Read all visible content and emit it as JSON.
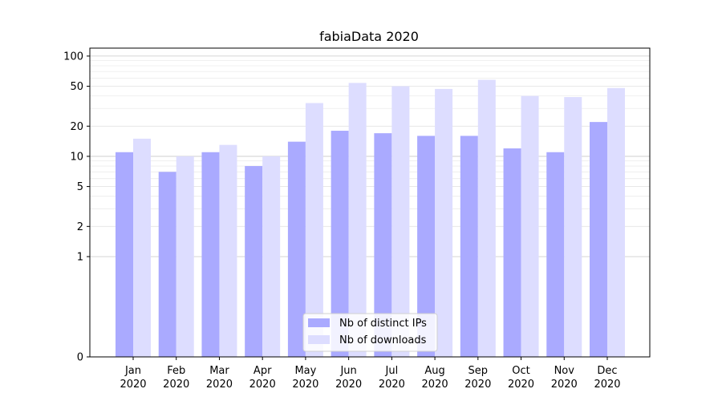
{
  "chart_data": {
    "type": "bar",
    "title": "fabiaData 2020",
    "xlabel": "",
    "ylabel": "",
    "yscale": "symlog",
    "ylim": [
      0,
      120
    ],
    "yticks": [
      0,
      1,
      2,
      5,
      10,
      20,
      50,
      100
    ],
    "grid": "y-major-and-minor",
    "legend_position": "bottom-center",
    "categories": [
      [
        "Jan",
        "2020"
      ],
      [
        "Feb",
        "2020"
      ],
      [
        "Mar",
        "2020"
      ],
      [
        "Apr",
        "2020"
      ],
      [
        "May",
        "2020"
      ],
      [
        "Jun",
        "2020"
      ],
      [
        "Jul",
        "2020"
      ],
      [
        "Aug",
        "2020"
      ],
      [
        "Sep",
        "2020"
      ],
      [
        "Oct",
        "2020"
      ],
      [
        "Nov",
        "2020"
      ],
      [
        "Dec",
        "2020"
      ]
    ],
    "series": [
      {
        "name": "Nb of distinct IPs",
        "color": "#aaaaff",
        "values": [
          11,
          7,
          11,
          8,
          14,
          18,
          17,
          16,
          16,
          12,
          11,
          22
        ]
      },
      {
        "name": "Nb of downloads",
        "color": "#ddddff",
        "values": [
          15,
          10,
          13,
          10,
          34,
          54,
          50,
          47,
          58,
          40,
          39,
          48
        ]
      }
    ]
  }
}
